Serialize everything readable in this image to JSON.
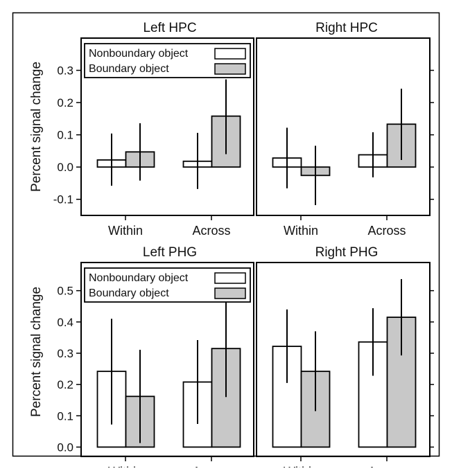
{
  "chart_data": [
    {
      "type": "bar",
      "title": "Left HPC",
      "ylabel": "Percent signal change",
      "categories": [
        "Within",
        "Across"
      ],
      "ylim": [
        -0.15,
        0.4
      ],
      "yticks": [
        "0.3",
        "0.2",
        "0.1",
        "0.0",
        "-0.1"
      ],
      "ytick_values": [
        0.3,
        0.2,
        0.1,
        0.0,
        -0.1
      ],
      "legend": {
        "position": "top-left",
        "entries": [
          "Nonboundary object",
          "Boundary object"
        ]
      },
      "series": [
        {
          "name": "Nonboundary object",
          "values": [
            0.022,
            0.018
          ],
          "error_low": [
            -0.058,
            -0.068
          ],
          "error_high": [
            0.104,
            0.106
          ]
        },
        {
          "name": "Boundary object",
          "values": [
            0.047,
            0.158
          ],
          "error_low": [
            -0.042,
            0.04
          ],
          "error_high": [
            0.136,
            0.272
          ]
        }
      ]
    },
    {
      "type": "bar",
      "title": "Right HPC",
      "categories": [
        "Within",
        "Across"
      ],
      "ylim": [
        -0.15,
        0.4
      ],
      "series": [
        {
          "name": "Nonboundary object",
          "values": [
            0.028,
            0.038
          ],
          "error_low": [
            -0.066,
            -0.032
          ],
          "error_high": [
            0.122,
            0.108
          ]
        },
        {
          "name": "Boundary object",
          "values": [
            -0.026,
            0.133
          ],
          "error_low": [
            -0.118,
            0.022
          ],
          "error_high": [
            0.066,
            0.243
          ]
        }
      ]
    },
    {
      "type": "bar",
      "title": "Left PHG",
      "ylabel": "Percent signal change",
      "categories": [
        "Within",
        "Across"
      ],
      "ylim": [
        -0.03,
        0.59
      ],
      "yticks": [
        "0.5",
        "0.4",
        "0.3",
        "0.2",
        "0.1",
        "0.0"
      ],
      "ytick_values": [
        0.5,
        0.4,
        0.3,
        0.2,
        0.1,
        0.0
      ],
      "legend": {
        "position": "top-left",
        "entries": [
          "Nonboundary object",
          "Boundary object"
        ]
      },
      "series": [
        {
          "name": "Nonboundary object",
          "values": [
            0.242,
            0.208
          ],
          "error_low": [
            0.072,
            0.074
          ],
          "error_high": [
            0.41,
            0.342
          ]
        },
        {
          "name": "Boundary object",
          "values": [
            0.162,
            0.315
          ],
          "error_low": [
            0.013,
            0.16
          ],
          "error_high": [
            0.311,
            0.47
          ]
        }
      ]
    },
    {
      "type": "bar",
      "title": "Right PHG",
      "categories": [
        "Within",
        "Across"
      ],
      "ylim": [
        -0.03,
        0.59
      ],
      "series": [
        {
          "name": "Nonboundary object",
          "values": [
            0.322,
            0.336
          ],
          "error_low": [
            0.205,
            0.228
          ],
          "error_high": [
            0.44,
            0.444
          ]
        },
        {
          "name": "Boundary object",
          "values": [
            0.242,
            0.415
          ],
          "error_low": [
            0.115,
            0.293
          ],
          "error_high": [
            0.37,
            0.537
          ]
        }
      ]
    }
  ],
  "colors": {
    "nonboundary_fill": "#ffffff",
    "boundary_fill": "#c8c8c8",
    "stroke": "#000000"
  }
}
